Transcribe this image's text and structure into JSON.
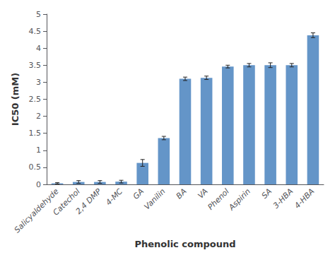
{
  "chart_data": {
    "type": "bar",
    "categories": [
      "Salicyaldehyde",
      "Catechol",
      "2,4 DMP",
      "4-MC",
      "GA",
      "Vanilin",
      "BA",
      "VA",
      "Phenol",
      "Aspirin",
      "SA",
      "3-HBA",
      "4-HBA"
    ],
    "values": [
      0.03,
      0.07,
      0.07,
      0.08,
      0.63,
      1.36,
      3.1,
      3.13,
      3.46,
      3.5,
      3.5,
      3.5,
      4.38
    ],
    "errors": [
      0.02,
      0.04,
      0.04,
      0.04,
      0.1,
      0.05,
      0.05,
      0.05,
      0.04,
      0.05,
      0.07,
      0.05,
      0.07
    ],
    "color": "#6495c8",
    "xlabel": "Phenolic compound",
    "ylabel": "IC50 (mM)",
    "ylim": [
      0,
      5
    ],
    "yticks": [
      0,
      0.5,
      1,
      1.5,
      2,
      2.5,
      3,
      3.5,
      4,
      4.5,
      5
    ],
    "grid": false
  }
}
